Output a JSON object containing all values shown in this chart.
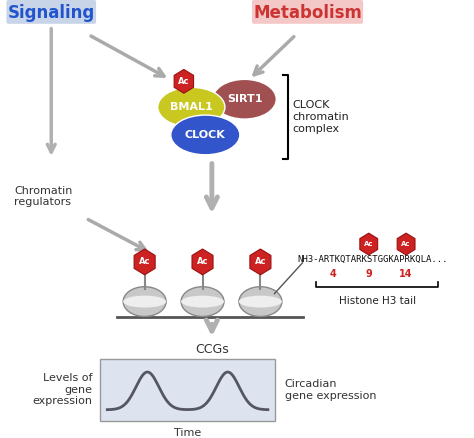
{
  "signaling_label": "Signaling",
  "metabolism_label": "Metabolism",
  "signaling_bg": "#c8d4e8",
  "metabolism_bg": "#f5c8c8",
  "signaling_color": "#2255cc",
  "metabolism_color": "#cc3333",
  "bmal1_color": "#c8c820",
  "clock_color": "#3355cc",
  "sirt1_color": "#a05050",
  "ac_color": "#cc2222",
  "histone_seq": "NH3-ARTKQTARKSTGGKAPRKQLA...",
  "histone_positions": [
    "4",
    "9",
    "14"
  ],
  "histone_label": "Histone H3 tail",
  "ccgs_label": "CCGs",
  "time_label": "Time",
  "levels_label": "Levels of\ngene\nexpression",
  "circadian_label": "Circadian\ngene expression",
  "chromatin_label": "Chromatin\nregulators",
  "clock_complex_label": "CLOCK\nchromatin\ncomplex"
}
